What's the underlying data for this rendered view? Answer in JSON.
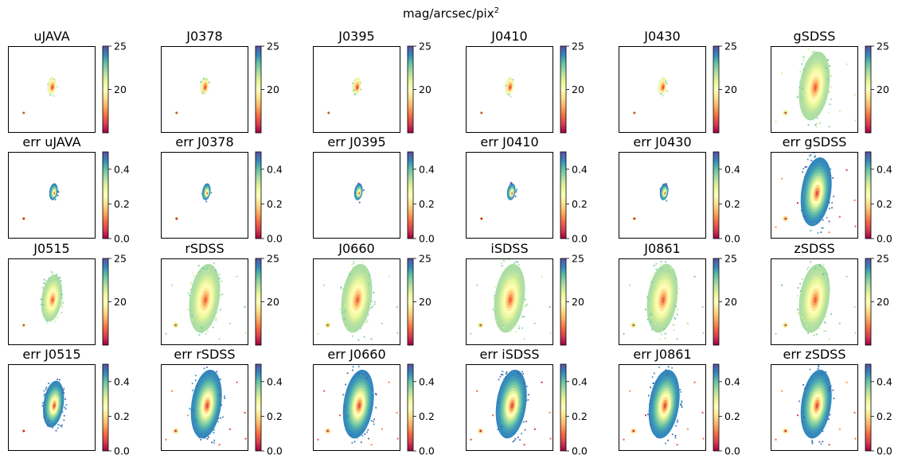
{
  "chart_data": {
    "type": "heatmap",
    "title": {
      "text": "mag/arcsec/pix",
      "exp": "2"
    },
    "colormap": "Spectral",
    "mag_colorbar": {
      "range": [
        15,
        25
      ],
      "ticks": [
        "20",
        "25"
      ],
      "tick_values": [
        20,
        25
      ]
    },
    "err_colorbar": {
      "range": [
        0,
        0.5
      ],
      "ticks": [
        "0.0",
        "0.2",
        "0.4"
      ],
      "tick_values": [
        0,
        0.2,
        0.4
      ]
    },
    "panels": [
      {
        "title": "uJAVA",
        "kind": "mag",
        "extent": "sparse"
      },
      {
        "title": "J0378",
        "kind": "mag",
        "extent": "sparse"
      },
      {
        "title": "J0395",
        "kind": "mag",
        "extent": "sparse"
      },
      {
        "title": "J0410",
        "kind": "mag",
        "extent": "sparse"
      },
      {
        "title": "J0430",
        "kind": "mag",
        "extent": "sparse"
      },
      {
        "title": "gSDSS",
        "kind": "mag",
        "extent": "full"
      },
      {
        "title": "err uJAVA",
        "kind": "err",
        "extent": "sparse"
      },
      {
        "title": "err J0378",
        "kind": "err",
        "extent": "sparse"
      },
      {
        "title": "err J0395",
        "kind": "err",
        "extent": "sparse"
      },
      {
        "title": "err J0410",
        "kind": "err",
        "extent": "sparse"
      },
      {
        "title": "err J0430",
        "kind": "err",
        "extent": "sparse"
      },
      {
        "title": "err gSDSS",
        "kind": "err",
        "extent": "full"
      },
      {
        "title": "J0515",
        "kind": "mag",
        "extent": "medium"
      },
      {
        "title": "rSDSS",
        "kind": "mag",
        "extent": "full"
      },
      {
        "title": "J0660",
        "kind": "mag",
        "extent": "full"
      },
      {
        "title": "iSDSS",
        "kind": "mag",
        "extent": "full"
      },
      {
        "title": "J0861",
        "kind": "mag",
        "extent": "full"
      },
      {
        "title": "zSDSS",
        "kind": "mag",
        "extent": "full"
      },
      {
        "title": "err J0515",
        "kind": "err",
        "extent": "medium"
      },
      {
        "title": "err rSDSS",
        "kind": "err",
        "extent": "full"
      },
      {
        "title": "err J0660",
        "kind": "err",
        "extent": "full"
      },
      {
        "title": "err iSDSS",
        "kind": "err",
        "extent": "full"
      },
      {
        "title": "err J0861",
        "kind": "err",
        "extent": "full"
      },
      {
        "title": "err zSDSS",
        "kind": "err",
        "extent": "full"
      }
    ]
  }
}
